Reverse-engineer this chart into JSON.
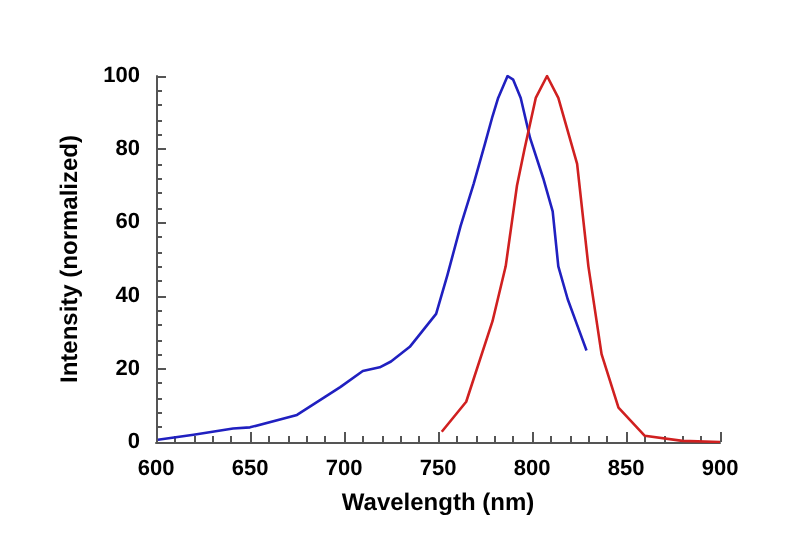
{
  "chart_data": {
    "type": "line",
    "xlabel": "Wavelength (nm)",
    "ylabel": "Intensity (normalized)",
    "xlim": [
      600,
      900
    ],
    "xticks": [
      600,
      650,
      700,
      750,
      800,
      850,
      900
    ],
    "ylim": [
      0,
      100
    ],
    "yticks": [
      0,
      20,
      40,
      60,
      80,
      100
    ],
    "grid": false,
    "marker": "none",
    "line_style": "solid",
    "series": [
      {
        "color": "#2020c0",
        "x": [
          601,
          620,
          641,
          650,
          675,
          692,
          698,
          710,
          719,
          725,
          735,
          742,
          749,
          755,
          762,
          769,
          775,
          779,
          782,
          787,
          790,
          794,
          799,
          806,
          811,
          814,
          819,
          824,
          829
        ],
        "values": [
          0.6,
          2,
          3.7,
          4,
          7.4,
          13,
          15,
          19.4,
          20.4,
          22,
          26,
          30.5,
          35,
          45.6,
          59,
          70.6,
          81.5,
          89,
          94,
          100,
          99,
          94,
          83,
          72,
          63,
          48,
          39,
          32,
          25
        ]
      },
      {
        "color": "#d02020",
        "x": [
          752,
          765,
          779,
          786,
          792,
          796,
          802,
          808,
          814,
          824,
          830,
          837,
          846,
          860,
          880,
          900
        ],
        "values": [
          2.8,
          11,
          33,
          48,
          70,
          80,
          94,
          100,
          94,
          76,
          48,
          24,
          9.4,
          1.7,
          0.3,
          0
        ]
      }
    ]
  }
}
